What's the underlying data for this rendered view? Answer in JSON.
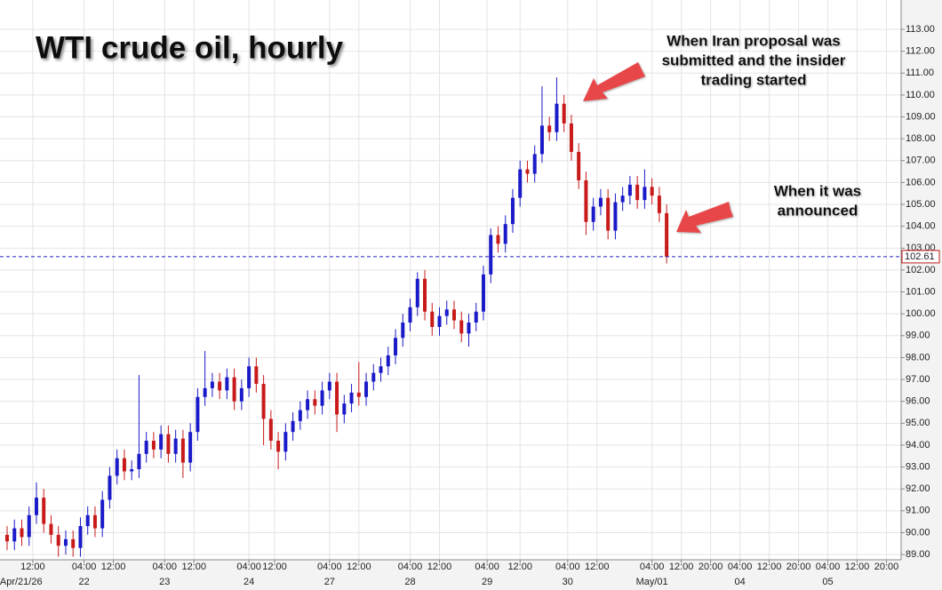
{
  "chart_data": {
    "type": "candlestick",
    "title": "WTI crude oil, hourly",
    "annotations": [
      {
        "lines": [
          "When Iran proposal was",
          "submitted and the insider",
          "trading started"
        ]
      },
      {
        "lines": [
          "When it was",
          "announced"
        ]
      }
    ],
    "up_color": "#1a1ac8",
    "down_color": "#c81a1a",
    "grid": true,
    "x": [
      0,
      2,
      4,
      6,
      8,
      10,
      12,
      14,
      16,
      18,
      20,
      22,
      24,
      26,
      28,
      30,
      32,
      34,
      36,
      38,
      40,
      42,
      44,
      46,
      48,
      50,
      52,
      54,
      56,
      58,
      60,
      62,
      64,
      66,
      68,
      70,
      72,
      74,
      76,
      78,
      80,
      82,
      84,
      86,
      88,
      90,
      92,
      94,
      96,
      98,
      100,
      102,
      104,
      106,
      108,
      110,
      112,
      114,
      116,
      118,
      120,
      122,
      124,
      126,
      128,
      130,
      132,
      134,
      136,
      138,
      140,
      142,
      144,
      146,
      148,
      150,
      152,
      154,
      156,
      158,
      160,
      162,
      164,
      166,
      168,
      170,
      172,
      174,
      176,
      178,
      180
    ],
    "open": [
      89.9,
      89.6,
      90.2,
      89.8,
      90.8,
      91.6,
      90.4,
      89.9,
      89.4,
      89.7,
      89.3,
      90.3,
      90.8,
      90.2,
      91.5,
      92.6,
      93.4,
      92.8,
      92.9,
      93.6,
      94.2,
      93.8,
      94.5,
      93.6,
      94.3,
      93.2,
      94.6,
      96.2,
      96.6,
      96.9,
      96.5,
      97.1,
      96.0,
      96.6,
      97.6,
      96.8,
      95.2,
      94.2,
      93.7,
      94.6,
      95.1,
      95.6,
      96.1,
      95.8,
      96.5,
      96.9,
      95.4,
      95.9,
      96.4,
      96.2,
      96.9,
      97.3,
      97.6,
      98.1,
      98.9,
      99.6,
      100.3,
      101.6,
      100.1,
      99.4,
      99.9,
      100.2,
      99.7,
      99.1,
      99.6,
      100.1,
      101.8,
      103.6,
      103.2,
      104.1,
      105.3,
      106.6,
      106.4,
      107.3,
      108.6,
      108.3,
      109.6,
      108.7,
      107.4,
      106.1,
      104.2,
      104.9,
      105.3,
      103.8,
      105.1,
      105.4,
      105.9,
      105.2,
      105.8,
      105.4,
      104.6
    ],
    "high": [
      90.3,
      90.6,
      90.6,
      91.2,
      92.3,
      92.0,
      90.8,
      90.3,
      90.1,
      90.1,
      90.7,
      91.2,
      91.2,
      91.9,
      93.0,
      93.8,
      93.8,
      93.3,
      97.2,
      94.6,
      94.6,
      94.9,
      94.9,
      94.7,
      94.7,
      95.0,
      96.6,
      98.3,
      97.3,
      97.3,
      97.5,
      97.5,
      97.0,
      98.0,
      98.0,
      97.2,
      95.6,
      94.6,
      95.0,
      95.5,
      96.0,
      96.5,
      96.5,
      96.9,
      97.3,
      97.3,
      96.3,
      96.8,
      97.8,
      97.3,
      97.7,
      98.0,
      98.5,
      99.3,
      100.0,
      100.7,
      101.9,
      102.0,
      100.5,
      100.3,
      100.6,
      100.6,
      100.1,
      100.0,
      100.5,
      102.2,
      103.9,
      104.0,
      104.5,
      105.7,
      107.0,
      107.0,
      107.7,
      110.4,
      109.0,
      110.8,
      110.0,
      109.1,
      107.8,
      106.5,
      105.3,
      105.7,
      105.7,
      105.5,
      105.8,
      106.3,
      106.3,
      106.6,
      106.2,
      105.8,
      105.0
    ],
    "low": [
      89.2,
      89.2,
      89.4,
      89.4,
      90.4,
      90.0,
      89.5,
      88.9,
      89.0,
      88.9,
      88.9,
      89.9,
      89.8,
      89.8,
      91.1,
      92.2,
      92.4,
      92.4,
      92.5,
      93.2,
      93.4,
      93.4,
      93.2,
      93.2,
      92.5,
      92.8,
      94.2,
      95.8,
      96.2,
      96.1,
      96.1,
      95.6,
      95.6,
      96.2,
      96.4,
      94.0,
      93.8,
      92.9,
      93.3,
      94.2,
      94.7,
      95.2,
      95.4,
      95.4,
      96.1,
      94.6,
      95.0,
      95.5,
      95.8,
      95.8,
      96.5,
      96.9,
      97.2,
      97.7,
      98.5,
      99.2,
      99.9,
      99.7,
      99.0,
      99.0,
      99.5,
      99.3,
      98.7,
      98.5,
      99.2,
      99.7,
      101.4,
      102.8,
      102.8,
      103.7,
      104.9,
      106.0,
      106.0,
      106.9,
      107.9,
      107.9,
      108.3,
      107.0,
      105.7,
      103.6,
      103.8,
      104.5,
      103.4,
      103.4,
      104.7,
      105.0,
      104.8,
      104.8,
      105.0,
      104.2,
      102.3
    ],
    "close": [
      89.6,
      90.2,
      89.8,
      90.8,
      91.6,
      90.4,
      89.9,
      89.4,
      89.7,
      89.3,
      90.3,
      90.8,
      90.2,
      91.5,
      92.6,
      93.4,
      92.8,
      92.9,
      93.6,
      94.2,
      93.8,
      94.5,
      93.6,
      94.3,
      93.2,
      94.6,
      96.2,
      96.6,
      96.9,
      96.5,
      97.1,
      96.0,
      96.6,
      97.6,
      96.8,
      95.2,
      94.2,
      93.7,
      94.6,
      95.1,
      95.6,
      96.1,
      95.8,
      96.5,
      96.9,
      95.4,
      95.9,
      96.4,
      96.2,
      96.9,
      97.3,
      97.6,
      98.1,
      98.9,
      99.6,
      100.3,
      101.6,
      100.1,
      99.4,
      99.9,
      100.2,
      99.7,
      99.1,
      99.6,
      100.1,
      101.8,
      103.6,
      103.2,
      104.1,
      105.3,
      106.6,
      106.4,
      107.3,
      108.6,
      108.3,
      109.6,
      108.7,
      107.4,
      106.1,
      104.2,
      104.9,
      105.3,
      103.8,
      105.1,
      105.4,
      105.9,
      105.2,
      105.8,
      105.4,
      104.6,
      102.61
    ],
    "last_price": 102.61,
    "last_price_color": "#2020c0",
    "xlim": [
      0,
      244
    ],
    "xticks": [
      {
        "value": 7,
        "label": "12:00"
      },
      {
        "value": 21,
        "label": "04:00"
      },
      {
        "value": 29,
        "label": "12:00"
      },
      {
        "value": 43,
        "label": "04:00"
      },
      {
        "value": 51,
        "label": "12:00"
      },
      {
        "value": 66,
        "label": "04:00"
      },
      {
        "value": 73,
        "label": "12:00"
      },
      {
        "value": 88,
        "label": "04:00"
      },
      {
        "value": 96,
        "label": "12:00"
      },
      {
        "value": 110,
        "label": "04:00"
      },
      {
        "value": 118,
        "label": "12:00"
      },
      {
        "value": 131,
        "label": "04:00"
      },
      {
        "value": 140,
        "label": "12:00"
      },
      {
        "value": 153,
        "label": "04:00"
      },
      {
        "value": 161,
        "label": "12:00"
      },
      {
        "value": 176,
        "label": "04:00"
      },
      {
        "value": 184,
        "label": "12:00"
      },
      {
        "value": 192,
        "label": "20:00"
      },
      {
        "value": 200,
        "label": "04:00"
      },
      {
        "value": 208,
        "label": "12:00"
      },
      {
        "value": 216,
        "label": "20:00"
      },
      {
        "value": 224,
        "label": "04:00"
      },
      {
        "value": 232,
        "label": "12:00"
      },
      {
        "value": 240,
        "label": "20:00"
      }
    ],
    "date_labels": [
      {
        "value": 7,
        "label": "Apr/21/26"
      },
      {
        "value": 21,
        "label": "22"
      },
      {
        "value": 43,
        "label": "23"
      },
      {
        "value": 66,
        "label": "24"
      },
      {
        "value": 88,
        "label": "27"
      },
      {
        "value": 110,
        "label": "28"
      },
      {
        "value": 131,
        "label": "29"
      },
      {
        "value": 153,
        "label": "30"
      },
      {
        "value": 176,
        "label": "May/01"
      },
      {
        "value": 200,
        "label": "04"
      },
      {
        "value": 224,
        "label": "05"
      }
    ],
    "ylim": [
      88.76,
      114.34
    ],
    "yticks": [
      {
        "value": 89,
        "label": "89.00"
      },
      {
        "value": 90,
        "label": "90.00"
      },
      {
        "value": 91,
        "label": "91.00"
      },
      {
        "value": 92,
        "label": "92.00"
      },
      {
        "value": 93,
        "label": "93.00"
      },
      {
        "value": 94,
        "label": "94.00"
      },
      {
        "value": 95,
        "label": "95.00"
      },
      {
        "value": 96,
        "label": "96.00"
      },
      {
        "value": 97,
        "label": "97.00"
      },
      {
        "value": 98,
        "label": "98.00"
      },
      {
        "value": 99,
        "label": "99.00"
      },
      {
        "value": 100,
        "label": "100.00"
      },
      {
        "value": 101,
        "label": "101.00"
      },
      {
        "value": 102,
        "label": "102.00"
      },
      {
        "value": 103,
        "label": "103.00"
      },
      {
        "value": 104,
        "label": "104.00"
      },
      {
        "value": 105,
        "label": "105.00"
      },
      {
        "value": 106,
        "label": "106.00"
      },
      {
        "value": 107,
        "label": "107.00"
      },
      {
        "value": 108,
        "label": "108.00"
      },
      {
        "value": 109,
        "label": "109.00"
      },
      {
        "value": 110,
        "label": "110.00"
      },
      {
        "value": 111,
        "label": "111.00"
      },
      {
        "value": 112,
        "label": "112.00"
      },
      {
        "value": 113,
        "label": "113.00"
      }
    ]
  }
}
